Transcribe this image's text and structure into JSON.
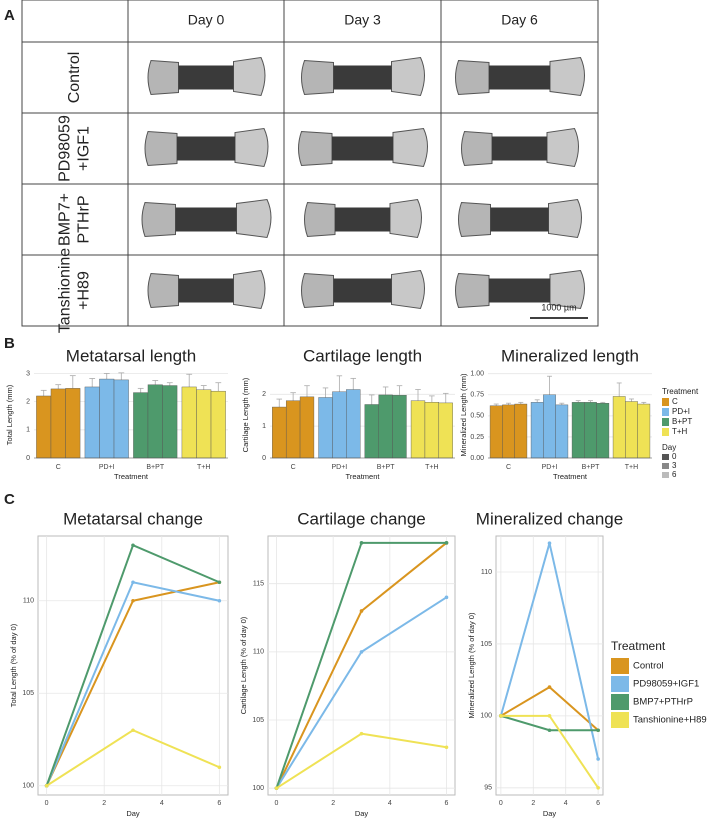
{
  "panel_labels": [
    "A",
    "B",
    "C"
  ],
  "image_grid": {
    "columns": [
      "Day 0",
      "Day 3",
      "Day 6"
    ],
    "rows": [
      [
        "Control"
      ],
      [
        "PD98059",
        "+IGF1"
      ],
      [
        "BMP7+",
        "PTHrP"
      ],
      [
        "Tanshionine",
        "+H89"
      ]
    ],
    "scale_bar": "1000 µm"
  },
  "chart_data": [
    {
      "type": "bar",
      "title": "Metatarsal length",
      "y_label": "Total Length (mm)",
      "x_label": "Treatment",
      "categories": [
        "C",
        "PD+I",
        "B+PT",
        "T+H"
      ],
      "category_colors": [
        "#d9951f",
        "#7cb9e8",
        "#4e9a6c",
        "#efe255"
      ],
      "series": [
        {
          "name": "0",
          "color": "#555555",
          "values": [
            2.2,
            2.52,
            2.32,
            2.52
          ],
          "errors": [
            0.2,
            0.3,
            0.15,
            0.45
          ]
        },
        {
          "name": "3",
          "color": "#888888",
          "values": [
            2.45,
            2.8,
            2.6,
            2.42
          ],
          "errors": [
            0.15,
            0.2,
            0.15,
            0.15
          ]
        },
        {
          "name": "6",
          "color": "#bbbbbb",
          "values": [
            2.47,
            2.77,
            2.57,
            2.37
          ],
          "errors": [
            0.45,
            0.25,
            0.1,
            0.3
          ]
        }
      ],
      "ylim": [
        0,
        3.05
      ],
      "yticks": [
        0,
        1,
        2,
        3
      ],
      "grid": true
    },
    {
      "type": "bar",
      "title": "Cartilage length",
      "y_label": "Cartilage Length (mm)",
      "x_label": "Treatment",
      "categories": [
        "C",
        "PD+I",
        "B+PT",
        "T+H"
      ],
      "category_colors": [
        "#d9951f",
        "#7cb9e8",
        "#4e9a6c",
        "#efe255"
      ],
      "series": [
        {
          "name": "0",
          "color": "#555555",
          "values": [
            1.6,
            1.9,
            1.68,
            1.8
          ],
          "errors": [
            0.25,
            0.3,
            0.3,
            0.35
          ]
        },
        {
          "name": "3",
          "color": "#888888",
          "values": [
            1.8,
            2.08,
            1.98,
            1.75
          ],
          "errors": [
            0.25,
            0.5,
            0.25,
            0.2
          ]
        },
        {
          "name": "6",
          "color": "#bbbbbb",
          "values": [
            1.92,
            2.15,
            1.97,
            1.73
          ],
          "errors": [
            0.35,
            0.35,
            0.3,
            0.3
          ]
        }
      ],
      "ylim": [
        0,
        2.7
      ],
      "yticks": [
        0,
        1,
        2
      ],
      "grid": true
    },
    {
      "type": "bar",
      "title": "Mineralized length",
      "y_label": "Mineralized Length (mm)",
      "x_label": "Treatment",
      "categories": [
        "C",
        "PD+I",
        "B+PT",
        "T+H"
      ],
      "category_colors": [
        "#d9951f",
        "#7cb9e8",
        "#4e9a6c",
        "#efe255"
      ],
      "series": [
        {
          "name": "0",
          "color": "#555555",
          "values": [
            0.62,
            0.66,
            0.66,
            0.73
          ],
          "errors": [
            0.02,
            0.03,
            0.02,
            0.16
          ]
        },
        {
          "name": "3",
          "color": "#888888",
          "values": [
            0.63,
            0.75,
            0.66,
            0.67
          ],
          "errors": [
            0.02,
            0.22,
            0.02,
            0.03
          ]
        },
        {
          "name": "6",
          "color": "#bbbbbb",
          "values": [
            0.64,
            0.63,
            0.65,
            0.64
          ],
          "errors": [
            0.02,
            0.02,
            0.01,
            0.02
          ]
        }
      ],
      "ylim": [
        0,
        1.02
      ],
      "yticks": [
        {
          "value": 0,
          "label": "0.00"
        },
        {
          "value": 0.25,
          "label": "0.25"
        },
        {
          "value": 0.5,
          "label": "0.50"
        },
        {
          "value": 0.75,
          "label": "0.75"
        },
        {
          "value": 1,
          "label": "1.00"
        }
      ],
      "grid": true,
      "legend_title": "Treatment",
      "legend_title_2": "Day"
    },
    {
      "type": "line",
      "title": "Metatarsal change",
      "y_label": "Total Length (% of day 0)",
      "x_label": "Day",
      "x": [
        0,
        3,
        6
      ],
      "series": [
        {
          "name": "Control",
          "color": "#d9951f",
          "values": [
            100,
            110,
            111
          ]
        },
        {
          "name": "PD98059+IGF1",
          "color": "#7cb9e8",
          "values": [
            100,
            111,
            110
          ]
        },
        {
          "name": "BMP7+PTHrP",
          "color": "#4e9a6c",
          "values": [
            100,
            113,
            111
          ]
        },
        {
          "name": "Tanshionine+H89",
          "color": "#efe255",
          "values": [
            100,
            103,
            101
          ]
        }
      ],
      "xlim": [
        -0.3,
        6.3
      ],
      "xticks": [
        0,
        2,
        4,
        6
      ],
      "ylim": [
        99.5,
        113.5
      ],
      "yticks": [
        100,
        105,
        110
      ],
      "grid": true
    },
    {
      "type": "line",
      "title": "Cartilage change",
      "y_label": "Cartilage Length (% of day 0)",
      "x_label": "Day",
      "x": [
        0,
        3,
        6
      ],
      "series": [
        {
          "name": "Control",
          "color": "#d9951f",
          "values": [
            100,
            113,
            118
          ]
        },
        {
          "name": "PD98059+IGF1",
          "color": "#7cb9e8",
          "values": [
            100,
            110,
            114
          ]
        },
        {
          "name": "BMP7+PTHrP",
          "color": "#4e9a6c",
          "values": [
            100,
            118,
            118
          ]
        },
        {
          "name": "Tanshionine+H89",
          "color": "#efe255",
          "values": [
            100,
            104,
            103
          ]
        }
      ],
      "xlim": [
        -0.3,
        6.3
      ],
      "xticks": [
        0,
        2,
        4,
        6
      ],
      "ylim": [
        99.5,
        118.5
      ],
      "yticks": [
        100,
        105,
        110,
        115
      ],
      "grid": true
    },
    {
      "type": "line",
      "title": "Mineralized change",
      "y_label": "Mineralized Length (% of day 0)",
      "x_label": "Day",
      "x": [
        0,
        3,
        6
      ],
      "series": [
        {
          "name": "Control",
          "color": "#d9951f",
          "values": [
            100,
            102,
            99
          ]
        },
        {
          "name": "PD98059+IGF1",
          "color": "#7cb9e8",
          "values": [
            100,
            112,
            97
          ]
        },
        {
          "name": "BMP7+PTHrP",
          "color": "#4e9a6c",
          "values": [
            100,
            99,
            99
          ]
        },
        {
          "name": "Tanshionine+H89",
          "color": "#efe255",
          "values": [
            100,
            100,
            95
          ]
        }
      ],
      "xlim": [
        -0.3,
        6.3
      ],
      "xticks": [
        0,
        2,
        4,
        6
      ],
      "ylim": [
        94.5,
        112.5
      ],
      "yticks": [
        95,
        100,
        105,
        110
      ],
      "grid": true,
      "legend_title": "Treatment"
    }
  ]
}
